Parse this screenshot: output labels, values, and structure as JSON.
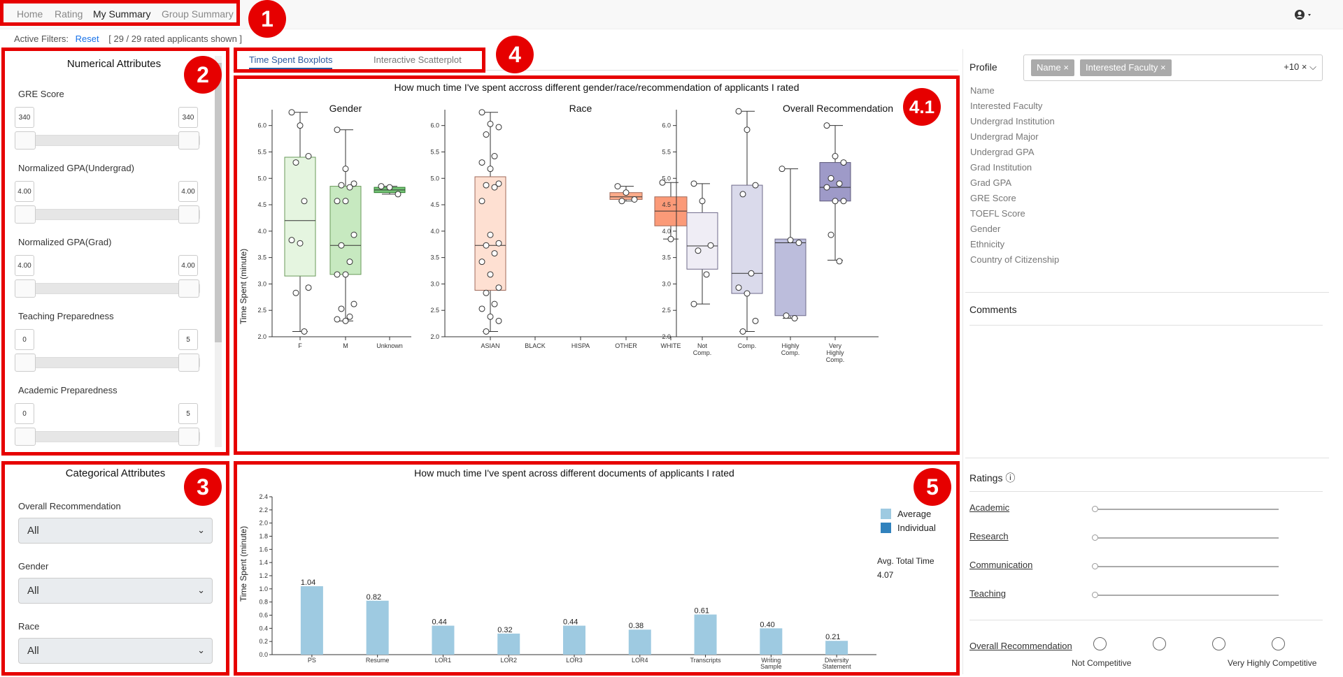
{
  "nav": {
    "items": [
      "Home",
      "Rating",
      "My Summary",
      "Group Summary"
    ],
    "active": 2
  },
  "filters": {
    "label": "Active Filters:",
    "reset": "Reset",
    "count": "[ 29 / 29 rated applicants shown ]"
  },
  "markers": [
    "1",
    "2",
    "3",
    "4",
    "4.1",
    "5"
  ],
  "numerical": {
    "title": "Numerical Attributes",
    "attributes": [
      {
        "label": "GRE Score",
        "min": "340",
        "max": "340"
      },
      {
        "label": "Normalized GPA(Undergrad)",
        "min": "4.00",
        "max": "4.00"
      },
      {
        "label": "Normalized GPA(Grad)",
        "min": "4.00",
        "max": "4.00"
      },
      {
        "label": "Teaching Preparedness",
        "min": "0",
        "max": "5"
      },
      {
        "label": "Academic Preparedness",
        "min": "0",
        "max": "5"
      }
    ]
  },
  "categorical": {
    "title": "Categorical Attributes",
    "fields": [
      {
        "label": "Overall Recommendation",
        "value": "All"
      },
      {
        "label": "Gender",
        "value": "All"
      },
      {
        "label": "Race",
        "value": "All"
      }
    ]
  },
  "tabs": [
    {
      "label": "Time Spent Boxplots",
      "active": true
    },
    {
      "label": "Interactive Scatterplot",
      "active": false
    }
  ],
  "chart_data": [
    {
      "type": "box",
      "title": "How much time I've spent accross different gender/race/recommendation of applicants I rated",
      "ylabel": "Time Spent (minute)",
      "ylim": [
        2.0,
        6.3
      ],
      "yticks": [
        "2.0",
        "2.5",
        "3.0",
        "3.5",
        "4.0",
        "4.5",
        "5.0",
        "5.5",
        "6.0"
      ],
      "panels": [
        {
          "title": "Gender",
          "groups": [
            {
              "label": [
                "F"
              ],
              "color": "#e5f5e0",
              "stroke": "#6a9a5a",
              "stats": [
                2.1,
                3.15,
                4.2,
                5.4,
                6.25
              ],
              "points": [
                6.25,
                6.0,
                5.42,
                5.3,
                4.57,
                3.83,
                3.77,
                2.93,
                2.83,
                2.1
              ]
            },
            {
              "label": [
                "M"
              ],
              "color": "#c7e9c0",
              "stroke": "#6a9a5a",
              "stats": [
                2.3,
                3.18,
                3.73,
                4.85,
                5.92
              ],
              "points": [
                5.92,
                5.18,
                4.9,
                4.87,
                4.83,
                4.57,
                4.57,
                3.93,
                3.73,
                3.42,
                3.18,
                3.18,
                2.62,
                2.53,
                2.38,
                2.33,
                2.3
              ]
            },
            {
              "label": [
                "Unknown"
              ],
              "color": "#74c476",
              "stroke": "#2b7a2b",
              "stats": [
                4.7,
                4.73,
                4.78,
                4.83,
                4.85
              ],
              "points": [
                4.85,
                4.83,
                4.7
              ]
            }
          ]
        },
        {
          "title": "Race",
          "groups": [
            {
              "label": [
                "ASIAN"
              ],
              "color": "#fee0d2",
              "stroke": "#a06a5a",
              "stats": [
                2.1,
                2.88,
                3.73,
                5.03,
                6.25
              ],
              "points": [
                6.25,
                6.03,
                5.97,
                5.83,
                5.42,
                5.3,
                5.18,
                4.9,
                4.87,
                4.83,
                4.57,
                3.93,
                3.77,
                3.73,
                3.58,
                3.42,
                3.18,
                2.93,
                2.83,
                2.62,
                2.53,
                2.38,
                2.3,
                2.1
              ]
            },
            {
              "label": [
                "BLACK"
              ],
              "color": "#fcbba1",
              "stroke": "#a06a5a",
              "stats": null,
              "points": []
            },
            {
              "label": [
                "HISPA"
              ],
              "color": "#fc9272",
              "stroke": "#a06a5a",
              "stats": null,
              "points": []
            },
            {
              "label": [
                "OTHER"
              ],
              "color": "#fcab8a",
              "stroke": "#a06a5a",
              "stats": [
                4.57,
                4.6,
                4.65,
                4.73,
                4.85
              ],
              "points": [
                4.85,
                4.73,
                4.6,
                4.57
              ]
            },
            {
              "label": [
                "WHITE"
              ],
              "color": "#fb9a78",
              "stroke": "#a06a5a",
              "stats": [
                3.85,
                4.1,
                4.38,
                4.65,
                4.92
              ],
              "points": [
                4.92,
                3.85
              ]
            }
          ]
        },
        {
          "title": "Overall Recommendation",
          "groups": [
            {
              "label": [
                "Not",
                "Comp."
              ],
              "color": "#efedf5",
              "stroke": "#6e6a8a",
              "stats": [
                2.62,
                3.28,
                3.72,
                4.35,
                4.9
              ],
              "points": [
                4.9,
                4.57,
                3.73,
                3.63,
                3.18,
                2.62
              ]
            },
            {
              "label": [
                "Comp."
              ],
              "color": "#dadaeb",
              "stroke": "#6e6a8a",
              "stats": [
                2.1,
                2.82,
                3.2,
                4.87,
                6.27
              ],
              "points": [
                6.27,
                5.92,
                4.87,
                4.7,
                3.2,
                2.93,
                2.82,
                2.3,
                2.1
              ]
            },
            {
              "label": [
                "Highly",
                "Comp."
              ],
              "color": "#bcbddc",
              "stroke": "#6e6a8a",
              "stats": [
                2.35,
                2.4,
                3.78,
                3.85,
                5.18
              ],
              "points": [
                5.18,
                3.83,
                3.78,
                2.4,
                2.35
              ]
            },
            {
              "label": [
                "Very",
                "Highly",
                "Comp."
              ],
              "color": "#9e9ac8",
              "stroke": "#5e5a7a",
              "stats": [
                3.45,
                4.57,
                4.83,
                5.3,
                6.0
              ],
              "points": [
                6.0,
                5.42,
                5.3,
                5.0,
                4.9,
                4.83,
                4.57,
                4.57,
                3.93,
                3.43
              ]
            }
          ]
        }
      ]
    },
    {
      "type": "bar",
      "title": "How much time I've spent across different documents of applicants I rated",
      "ylabel": "Time Spent (minute)",
      "ylim": [
        0,
        2.4
      ],
      "yticks": [
        "0.0",
        "0.2",
        "0.4",
        "0.6",
        "0.8",
        "1.0",
        "1.2",
        "1.4",
        "1.6",
        "1.8",
        "2.0",
        "2.2",
        "2.4"
      ],
      "categories": [
        [
          "PS"
        ],
        [
          "Resume"
        ],
        [
          "LOR1"
        ],
        [
          "LOR2"
        ],
        [
          "LOR3"
        ],
        [
          "LOR4"
        ],
        [
          "Transcripts"
        ],
        [
          "Writing",
          "Sample"
        ],
        [
          "Diversity",
          "Statement"
        ]
      ],
      "values": [
        1.04,
        0.82,
        0.44,
        0.32,
        0.44,
        0.38,
        0.61,
        0.4,
        0.21
      ],
      "value_labels": [
        "1.04",
        "0.82",
        "0.44",
        "0.32",
        "0.44",
        "0.38",
        "0.61",
        "0.40",
        "0.21"
      ],
      "legend": [
        {
          "name": "Average",
          "color": "#9ecae1"
        },
        {
          "name": "Individual",
          "color": "#3182bd"
        }
      ],
      "avg_total_label": "Avg. Total Time",
      "avg_total_value": "4.07"
    }
  ],
  "profile": {
    "label": "Profile",
    "chips": [
      "Name",
      "Interested Faculty"
    ],
    "chip_close": "×",
    "more": "+10",
    "clear": "×",
    "caret": "⌵",
    "items": [
      "Name",
      "Interested Faculty",
      "Undergrad Institution",
      "Undergrad Major",
      "Undergrad GPA",
      "Grad Institution",
      "Grad GPA",
      "GRE Score",
      "TOEFL Score",
      "Gender",
      "Ethnicity",
      "Country of Citizenship"
    ]
  },
  "comments": {
    "label": "Comments"
  },
  "ratings": {
    "label": "Ratings",
    "info_icon": "ⓘ",
    "items": [
      "Academic",
      "Research",
      "Communication",
      "Teaching"
    ],
    "overall_label": "Overall Recommendation",
    "scale_low": "Not Competitive",
    "scale_high": "Very Highly Competitive"
  },
  "user_icon": "user-circle-icon"
}
